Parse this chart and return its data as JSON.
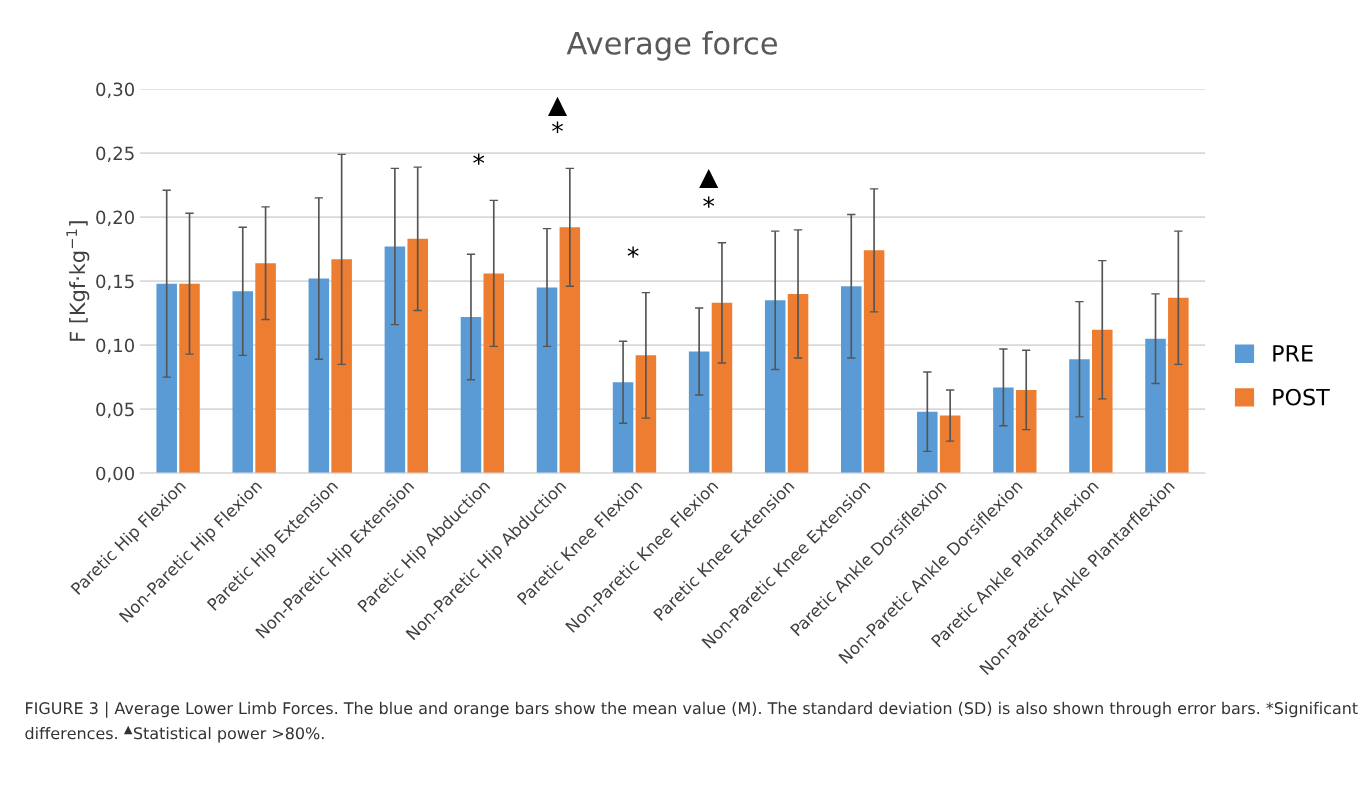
{
  "chart_data": {
    "type": "bar",
    "title": "Average force",
    "ylabel": "F [Kgf·kg$^{−1}$]",
    "categories": [
      "Paretic Hip Flexion",
      "Non-Paretic Hip Flexion",
      "Paretic Hip Extension",
      "Non-Paretic Hip Extension",
      "Paretic Hip Abduction",
      "Non-Paretic Hip Abduction",
      "Paretic Knee Flexion",
      "Non-Paretic Knee Flexion",
      "Paretic Knee Extension",
      "Non-Paretic Knee Extension",
      "Paretic Ankle Dorsiflexion",
      "Non-Paretic Ankle Dorsiflexion",
      "Paretic Ankle Plantarflexion",
      "Non-Paretic Ankle Plantarflexion"
    ],
    "series": [
      {
        "name": "PRE",
        "color": "#5b9bd5",
        "values": [
          0.148,
          0.142,
          0.152,
          0.177,
          0.122,
          0.145,
          0.071,
          0.095,
          0.135,
          0.146,
          0.048,
          0.067,
          0.089,
          0.105
        ],
        "errors": [
          0.073,
          0.05,
          0.063,
          0.061,
          0.049,
          0.046,
          0.032,
          0.034,
          0.054,
          0.056,
          0.031,
          0.03,
          0.045,
          0.035
        ]
      },
      {
        "name": "POST",
        "color": "#ed7d31",
        "values": [
          0.148,
          0.164,
          0.167,
          0.183,
          0.156,
          0.192,
          0.092,
          0.133,
          0.14,
          0.174,
          0.045,
          0.065,
          0.112,
          0.137
        ],
        "errors": [
          0.055,
          0.044,
          0.082,
          0.056,
          0.057,
          0.046,
          0.049,
          0.047,
          0.05,
          0.048,
          0.02,
          0.031,
          0.054,
          0.052
        ]
      }
    ],
    "ylim": [
      0,
      0.3
    ],
    "yticks": [
      {
        "value": 0,
        "label": "0,00"
      },
      {
        "value": 0.05,
        "label": "0,05"
      },
      {
        "value": 0.1,
        "label": "0,10"
      },
      {
        "value": 0.15,
        "label": "0,15"
      },
      {
        "value": 0.2,
        "label": "0,20"
      },
      {
        "value": 0.25,
        "label": "0,25"
      },
      {
        "value": 0.3,
        "label": "0,30"
      }
    ],
    "grid": "y",
    "legend": "right",
    "annotations": [
      "*",
      "*",
      "▲",
      "*",
      "*",
      "▲",
      "FIGURE 3 | Average Lower Limb Forces. The blue and orange bars show the mean value (M). The standard deviation (SD) is also shown through error bars. *Significant differences. $^{▲}$Statistical power >80%."
    ]
  }
}
